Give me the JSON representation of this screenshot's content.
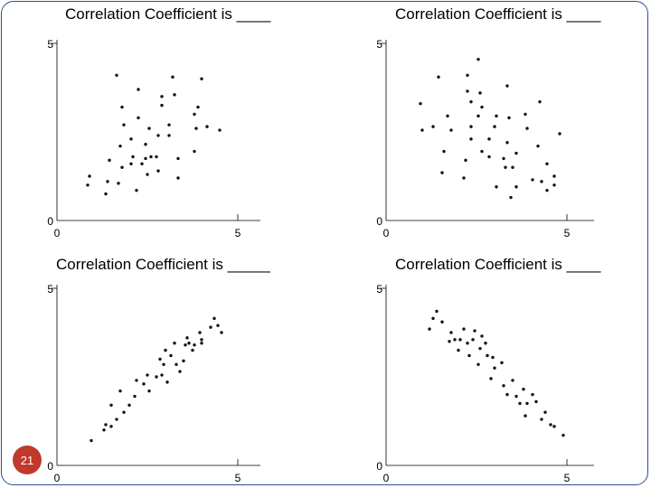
{
  "slide_number": "21",
  "chart_data": [
    {
      "type": "scatter",
      "title": "Correlation Coefficient is ____",
      "xlim": [
        0,
        5
      ],
      "ylim": [
        0,
        5
      ],
      "xticks": [
        "0",
        "5"
      ],
      "yticks": [
        "0",
        "5"
      ],
      "points": [
        [
          0.85,
          1.0
        ],
        [
          0.9,
          1.25
        ],
        [
          1.35,
          0.75
        ],
        [
          1.4,
          1.1
        ],
        [
          1.45,
          1.7
        ],
        [
          1.7,
          1.05
        ],
        [
          1.75,
          2.1
        ],
        [
          1.8,
          1.5
        ],
        [
          1.85,
          2.7
        ],
        [
          1.8,
          3.2
        ],
        [
          1.65,
          4.1
        ],
        [
          2.05,
          1.6
        ],
        [
          2.05,
          2.3
        ],
        [
          2.1,
          1.8
        ],
        [
          2.2,
          0.85
        ],
        [
          2.25,
          2.9
        ],
        [
          2.25,
          3.7
        ],
        [
          2.35,
          1.6
        ],
        [
          2.45,
          1.75
        ],
        [
          2.45,
          2.15
        ],
        [
          2.5,
          1.3
        ],
        [
          2.6,
          1.8
        ],
        [
          2.55,
          2.6
        ],
        [
          2.75,
          1.8
        ],
        [
          2.8,
          1.4
        ],
        [
          2.8,
          2.4
        ],
        [
          2.9,
          3.25
        ],
        [
          2.9,
          3.5
        ],
        [
          3.1,
          2.7
        ],
        [
          3.1,
          2.4
        ],
        [
          3.2,
          4.05
        ],
        [
          3.25,
          3.55
        ],
        [
          3.35,
          1.75
        ],
        [
          3.35,
          1.2
        ],
        [
          3.8,
          1.95
        ],
        [
          3.8,
          3.0
        ],
        [
          3.85,
          2.6
        ],
        [
          3.9,
          3.2
        ],
        [
          4.0,
          4.0
        ],
        [
          4.15,
          2.65
        ],
        [
          4.5,
          2.55
        ]
      ]
    },
    {
      "type": "scatter",
      "title": "Correlation Coefficient is ____",
      "xlim": [
        0,
        5
      ],
      "ylim": [
        0,
        5
      ],
      "xticks": [
        "0",
        "5"
      ],
      "yticks": [
        "0",
        "5"
      ],
      "points": [
        [
          0.95,
          3.3
        ],
        [
          1.0,
          2.55
        ],
        [
          1.3,
          2.65
        ],
        [
          1.45,
          4.05
        ],
        [
          1.55,
          1.35
        ],
        [
          1.6,
          1.95
        ],
        [
          1.7,
          2.95
        ],
        [
          1.8,
          2.55
        ],
        [
          2.15,
          1.2
        ],
        [
          2.2,
          1.7
        ],
        [
          2.25,
          3.65
        ],
        [
          2.35,
          2.65
        ],
        [
          2.35,
          2.3
        ],
        [
          2.25,
          4.1
        ],
        [
          2.35,
          3.35
        ],
        [
          2.55,
          2.95
        ],
        [
          2.55,
          4.55
        ],
        [
          2.6,
          3.6
        ],
        [
          2.65,
          3.2
        ],
        [
          2.65,
          1.95
        ],
        [
          2.85,
          2.3
        ],
        [
          2.85,
          1.8
        ],
        [
          3.0,
          2.65
        ],
        [
          3.05,
          2.95
        ],
        [
          3.05,
          0.95
        ],
        [
          3.25,
          1.75
        ],
        [
          3.3,
          1.5
        ],
        [
          3.35,
          2.2
        ],
        [
          3.35,
          3.8
        ],
        [
          3.4,
          2.9
        ],
        [
          3.45,
          0.65
        ],
        [
          3.5,
          1.5
        ],
        [
          3.6,
          1.9
        ],
        [
          3.6,
          0.95
        ],
        [
          3.85,
          3.0
        ],
        [
          3.9,
          2.6
        ],
        [
          4.05,
          1.15
        ],
        [
          4.2,
          2.1
        ],
        [
          4.25,
          3.35
        ],
        [
          4.3,
          1.1
        ],
        [
          4.45,
          1.6
        ],
        [
          4.45,
          0.85
        ],
        [
          4.65,
          1.0
        ],
        [
          4.65,
          1.25
        ],
        [
          4.8,
          2.45
        ]
      ]
    },
    {
      "type": "scatter",
      "title": "Correlation Coefficient is _____",
      "xlim": [
        0,
        5
      ],
      "ylim": [
        0,
        5
      ],
      "xticks": [
        "0",
        "5"
      ],
      "yticks": [
        "0",
        "5"
      ],
      "points": [
        [
          0.95,
          0.7
        ],
        [
          1.3,
          1.0
        ],
        [
          1.35,
          1.15
        ],
        [
          1.5,
          1.1
        ],
        [
          1.5,
          1.7
        ],
        [
          1.65,
          1.3
        ],
        [
          1.75,
          2.1
        ],
        [
          1.85,
          1.5
        ],
        [
          2.0,
          1.7
        ],
        [
          2.15,
          1.95
        ],
        [
          2.2,
          2.4
        ],
        [
          2.4,
          2.3
        ],
        [
          2.5,
          2.55
        ],
        [
          2.55,
          2.1
        ],
        [
          2.75,
          2.5
        ],
        [
          2.85,
          3.0
        ],
        [
          2.9,
          2.55
        ],
        [
          2.95,
          2.85
        ],
        [
          3.0,
          3.25
        ],
        [
          3.05,
          2.35
        ],
        [
          3.15,
          3.1
        ],
        [
          3.25,
          3.45
        ],
        [
          3.3,
          2.85
        ],
        [
          3.4,
          2.65
        ],
        [
          3.5,
          2.95
        ],
        [
          3.55,
          3.4
        ],
        [
          3.6,
          3.6
        ],
        [
          3.65,
          3.45
        ],
        [
          3.75,
          3.25
        ],
        [
          3.8,
          3.4
        ],
        [
          3.95,
          3.75
        ],
        [
          4.0,
          3.45
        ],
        [
          4.0,
          3.55
        ],
        [
          4.25,
          3.9
        ],
        [
          4.35,
          4.15
        ],
        [
          4.45,
          3.95
        ],
        [
          4.55,
          3.75
        ]
      ]
    },
    {
      "type": "scatter",
      "title": "Correlation Coefficient is ____",
      "xlim": [
        0,
        5
      ],
      "ylim": [
        0,
        5
      ],
      "xticks": [
        "0",
        "5"
      ],
      "yticks": [
        "0",
        "5"
      ],
      "points": [
        [
          1.2,
          3.85
        ],
        [
          1.3,
          4.15
        ],
        [
          1.4,
          4.35
        ],
        [
          1.55,
          4.05
        ],
        [
          1.75,
          3.5
        ],
        [
          1.8,
          3.75
        ],
        [
          1.9,
          3.55
        ],
        [
          2.0,
          3.25
        ],
        [
          2.05,
          3.55
        ],
        [
          2.15,
          3.85
        ],
        [
          2.25,
          3.45
        ],
        [
          2.3,
          3.1
        ],
        [
          2.4,
          3.55
        ],
        [
          2.45,
          3.8
        ],
        [
          2.55,
          2.85
        ],
        [
          2.6,
          3.3
        ],
        [
          2.65,
          3.65
        ],
        [
          2.75,
          3.45
        ],
        [
          2.8,
          3.1
        ],
        [
          2.9,
          2.45
        ],
        [
          2.95,
          3.05
        ],
        [
          3.0,
          2.75
        ],
        [
          3.2,
          2.9
        ],
        [
          3.25,
          2.25
        ],
        [
          3.35,
          2.0
        ],
        [
          3.5,
          2.4
        ],
        [
          3.6,
          1.95
        ],
        [
          3.7,
          1.75
        ],
        [
          3.8,
          2.15
        ],
        [
          3.85,
          1.4
        ],
        [
          3.9,
          1.75
        ],
        [
          4.05,
          2.0
        ],
        [
          4.15,
          1.8
        ],
        [
          4.3,
          1.3
        ],
        [
          4.4,
          1.5
        ],
        [
          4.55,
          1.15
        ],
        [
          4.65,
          1.1
        ],
        [
          4.9,
          0.85
        ]
      ]
    }
  ]
}
